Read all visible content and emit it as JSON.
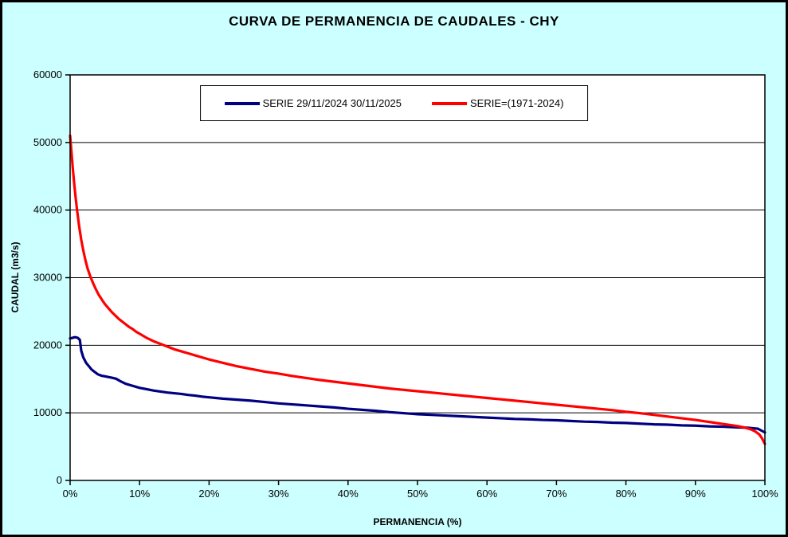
{
  "title": "CURVA DE PERMANENCIA DE CAUDALES - CHY",
  "colors": {
    "background": "#ccffff",
    "plot_background": "#ffffff",
    "grid": "#000000",
    "series_blue": "#000080",
    "series_red": "#ff0000"
  },
  "chart_data": {
    "type": "line",
    "title": "CURVA DE PERMANENCIA DE CAUDALES - CHY",
    "xlabel": "PERMANENCIA (%)",
    "ylabel": "CAUDAL (m3/s)",
    "xlim": [
      0,
      100
    ],
    "ylim": [
      0,
      60000
    ],
    "grid": "horizontal",
    "legend_position": "top-center",
    "x_ticks": [
      0,
      10,
      20,
      30,
      40,
      50,
      60,
      70,
      80,
      90,
      100
    ],
    "x_tick_labels": [
      "0%",
      "10%",
      "20%",
      "30%",
      "40%",
      "50%",
      "60%",
      "70%",
      "80%",
      "90%",
      "100%"
    ],
    "y_ticks": [
      0,
      10000,
      20000,
      30000,
      40000,
      50000,
      60000
    ],
    "y_tick_labels": [
      "0",
      "10000",
      "20000",
      "30000",
      "40000",
      "50000",
      "60000"
    ],
    "series": [
      {
        "name": "SERIE 29/11/2024 30/11/2025",
        "color": "#000080",
        "points": [
          [
            0,
            21000
          ],
          [
            0.7,
            21200
          ],
          [
            1.1,
            21100
          ],
          [
            1.4,
            20800
          ],
          [
            1.6,
            19200
          ],
          [
            1.9,
            18200
          ],
          [
            2.3,
            17400
          ],
          [
            2.7,
            16900
          ],
          [
            3.1,
            16400
          ],
          [
            3.6,
            16000
          ],
          [
            4,
            15700
          ],
          [
            4.5,
            15500
          ],
          [
            5,
            15400
          ],
          [
            5.5,
            15300
          ],
          [
            6,
            15200
          ],
          [
            6.6,
            15050
          ],
          [
            7.2,
            14700
          ],
          [
            8,
            14300
          ],
          [
            9,
            14000
          ],
          [
            10,
            13700
          ],
          [
            11,
            13500
          ],
          [
            12,
            13300
          ],
          [
            13,
            13150
          ],
          [
            14,
            13000
          ],
          [
            15,
            12900
          ],
          [
            16,
            12800
          ],
          [
            17,
            12650
          ],
          [
            18,
            12550
          ],
          [
            19,
            12400
          ],
          [
            20,
            12300
          ],
          [
            22,
            12100
          ],
          [
            24,
            11950
          ],
          [
            26,
            11800
          ],
          [
            28,
            11600
          ],
          [
            30,
            11400
          ],
          [
            32,
            11250
          ],
          [
            34,
            11100
          ],
          [
            36,
            10950
          ],
          [
            38,
            10800
          ],
          [
            40,
            10600
          ],
          [
            42,
            10450
          ],
          [
            44,
            10300
          ],
          [
            46,
            10100
          ],
          [
            48,
            9950
          ],
          [
            50,
            9800
          ],
          [
            52,
            9700
          ],
          [
            54,
            9600
          ],
          [
            56,
            9500
          ],
          [
            58,
            9400
          ],
          [
            60,
            9300
          ],
          [
            62,
            9200
          ],
          [
            64,
            9100
          ],
          [
            66,
            9050
          ],
          [
            68,
            8950
          ],
          [
            70,
            8900
          ],
          [
            72,
            8800
          ],
          [
            74,
            8700
          ],
          [
            76,
            8650
          ],
          [
            78,
            8550
          ],
          [
            80,
            8500
          ],
          [
            82,
            8400
          ],
          [
            84,
            8300
          ],
          [
            86,
            8250
          ],
          [
            88,
            8150
          ],
          [
            90,
            8100
          ],
          [
            92,
            8000
          ],
          [
            94,
            7950
          ],
          [
            96,
            7850
          ],
          [
            97.5,
            7800
          ],
          [
            99,
            7650
          ],
          [
            100,
            7100
          ]
        ]
      },
      {
        "name": "SERIE=(1971-2024)",
        "color": "#ff0000",
        "points": [
          [
            0,
            51000
          ],
          [
            0.2,
            48500
          ],
          [
            0.4,
            46000
          ],
          [
            0.6,
            43800
          ],
          [
            0.8,
            41800
          ],
          [
            1,
            40000
          ],
          [
            1.3,
            37600
          ],
          [
            1.6,
            35600
          ],
          [
            1.9,
            34000
          ],
          [
            2.2,
            32600
          ],
          [
            2.5,
            31400
          ],
          [
            2.9,
            30200
          ],
          [
            3.3,
            29200
          ],
          [
            3.7,
            28300
          ],
          [
            4.1,
            27500
          ],
          [
            4.6,
            26700
          ],
          [
            5,
            26100
          ],
          [
            5.5,
            25500
          ],
          [
            6,
            24900
          ],
          [
            6.5,
            24400
          ],
          [
            7,
            23900
          ],
          [
            7.5,
            23500
          ],
          [
            8,
            23100
          ],
          [
            8.5,
            22700
          ],
          [
            9,
            22400
          ],
          [
            9.5,
            22000
          ],
          [
            10,
            21700
          ],
          [
            11,
            21100
          ],
          [
            12,
            20600
          ],
          [
            13,
            20200
          ],
          [
            14,
            19800
          ],
          [
            15,
            19400
          ],
          [
            16,
            19100
          ],
          [
            17,
            18800
          ],
          [
            18,
            18500
          ],
          [
            19,
            18200
          ],
          [
            20,
            17900
          ],
          [
            21,
            17650
          ],
          [
            22,
            17400
          ],
          [
            23,
            17150
          ],
          [
            24,
            16900
          ],
          [
            25,
            16700
          ],
          [
            26,
            16500
          ],
          [
            27,
            16300
          ],
          [
            28,
            16100
          ],
          [
            29,
            15950
          ],
          [
            30,
            15800
          ],
          [
            32,
            15450
          ],
          [
            34,
            15150
          ],
          [
            36,
            14850
          ],
          [
            38,
            14600
          ],
          [
            40,
            14350
          ],
          [
            42,
            14100
          ],
          [
            44,
            13850
          ],
          [
            46,
            13600
          ],
          [
            48,
            13400
          ],
          [
            50,
            13200
          ],
          [
            52,
            13000
          ],
          [
            54,
            12800
          ],
          [
            56,
            12600
          ],
          [
            58,
            12400
          ],
          [
            60,
            12200
          ],
          [
            62,
            12000
          ],
          [
            64,
            11800
          ],
          [
            66,
            11600
          ],
          [
            68,
            11400
          ],
          [
            70,
            11200
          ],
          [
            72,
            11000
          ],
          [
            74,
            10800
          ],
          [
            76,
            10600
          ],
          [
            78,
            10400
          ],
          [
            80,
            10150
          ],
          [
            82,
            9950
          ],
          [
            84,
            9700
          ],
          [
            86,
            9450
          ],
          [
            88,
            9200
          ],
          [
            90,
            8950
          ],
          [
            92,
            8650
          ],
          [
            94,
            8350
          ],
          [
            95,
            8200
          ],
          [
            96,
            8050
          ],
          [
            97,
            7850
          ],
          [
            98,
            7550
          ],
          [
            98.6,
            7250
          ],
          [
            99.2,
            6800
          ],
          [
            99.6,
            6200
          ],
          [
            99.9,
            5600
          ],
          [
            100,
            5400
          ]
        ]
      }
    ]
  }
}
